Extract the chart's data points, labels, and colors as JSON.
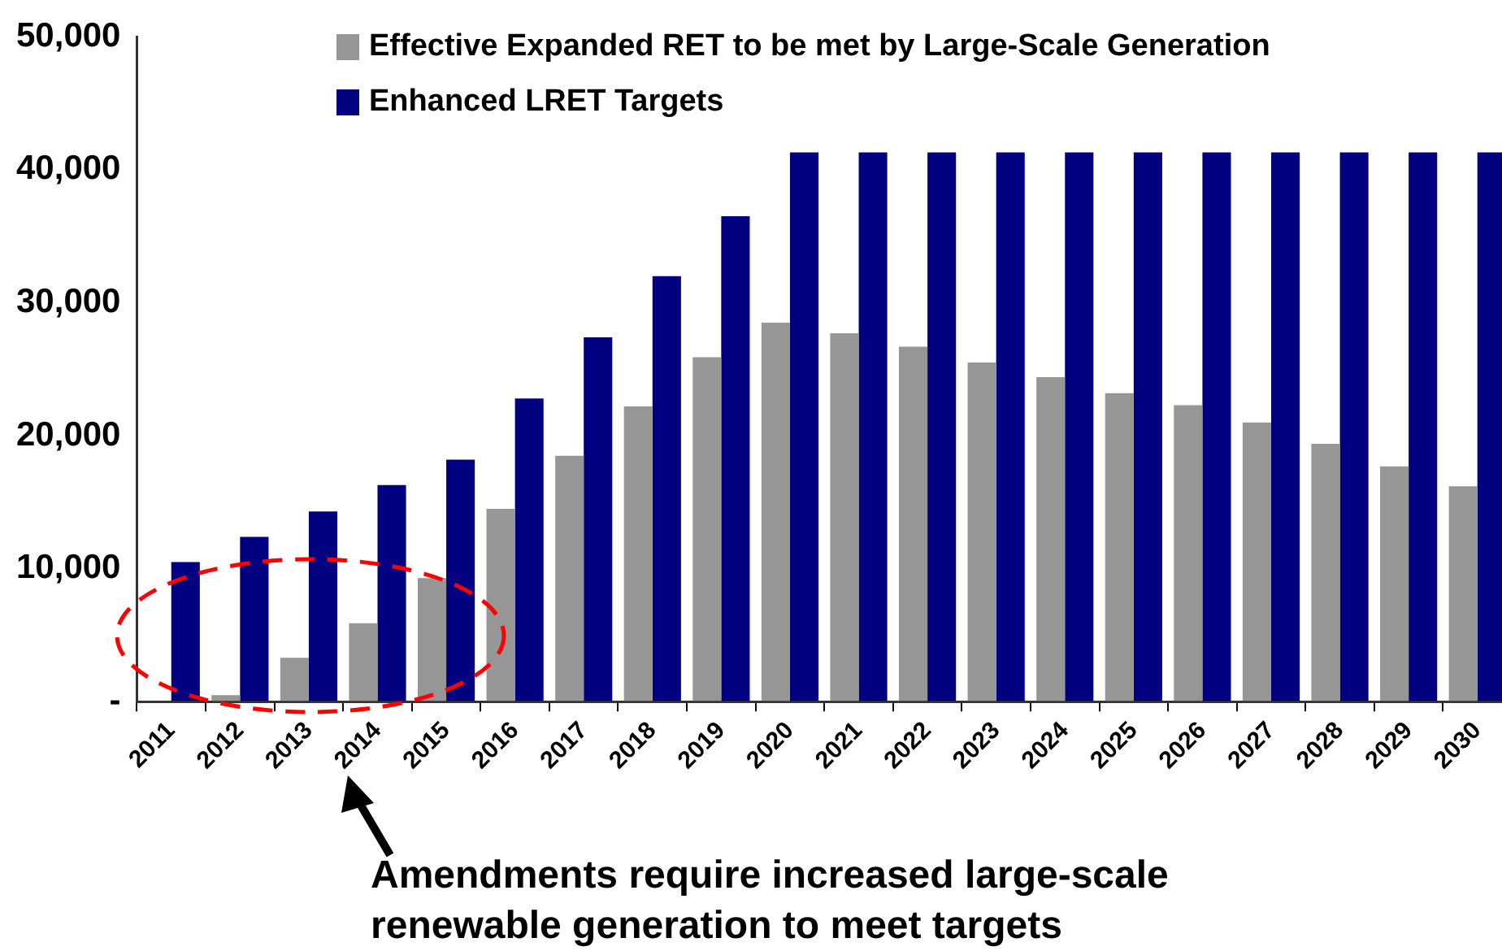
{
  "chart_data": {
    "type": "bar",
    "categories": [
      "2011",
      "2012",
      "2013",
      "2014",
      "2015",
      "2016",
      "2017",
      "2018",
      "2019",
      "2020",
      "2021",
      "2022",
      "2023",
      "2024",
      "2025",
      "2026",
      "2027",
      "2028",
      "2029",
      "2030"
    ],
    "series": [
      {
        "name": "Effective Expanded RET to be met by Large-Scale Generation",
        "color": "#969696",
        "values": [
          0,
          500,
          3300,
          5900,
          9300,
          14500,
          18500,
          22200,
          25900,
          28500,
          27700,
          26700,
          25500,
          24400,
          23200,
          22300,
          21000,
          19400,
          17700,
          16200
        ]
      },
      {
        "name": "Enhanced LRET Targets",
        "color": "#000080",
        "values": [
          10500,
          12400,
          14300,
          16300,
          18200,
          22800,
          27400,
          32000,
          36500,
          41300,
          41300,
          41300,
          41300,
          41300,
          41300,
          41300,
          41300,
          41300,
          41300,
          41300
        ]
      }
    ],
    "ylim": [
      0,
      50000
    ],
    "yticks": [
      {
        "value": 0,
        "label": "-"
      },
      {
        "value": 10000,
        "label": "10,000"
      },
      {
        "value": 20000,
        "label": "20,000"
      },
      {
        "value": 30000,
        "label": "30,000"
      },
      {
        "value": 40000,
        "label": "40,000"
      },
      {
        "value": 50000,
        "label": "50,000"
      }
    ],
    "grid": false,
    "legend": "top",
    "annotations": [
      "Amendments require increased large-scale renewable generation to meet targets"
    ]
  }
}
